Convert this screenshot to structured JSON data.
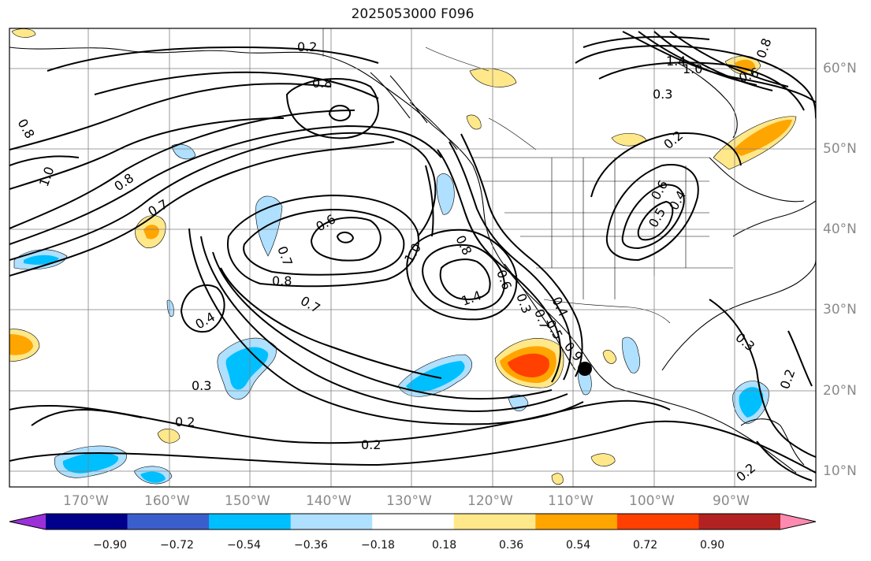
{
  "title": "2025053000 F096",
  "lon_ticks": [
    "170°W",
    "160°W",
    "150°W",
    "140°W",
    "130°W",
    "120°W",
    "110°W",
    "100°W",
    "90°W"
  ],
  "lat_ticks": [
    "60°N",
    "50°N",
    "40°N",
    "30°N",
    "20°N",
    "10°N"
  ],
  "colorbar": {
    "colors": [
      "#9b30d9",
      "#00008b",
      "#3a5fcd",
      "#00bfff",
      "#afe0ff",
      "#ffffff",
      "#ffe88a",
      "#ffa500",
      "#ff4000",
      "#b22222",
      "#ff8ab0"
    ],
    "labels": [
      "−0.90",
      "−0.72",
      "−0.54",
      "−0.36",
      "−0.18",
      "0.18",
      "0.36",
      "0.54",
      "0.72",
      "0.90"
    ]
  },
  "contour_labels": [
    "0.2",
    "0.8",
    "0.8",
    "1.0",
    "0.8",
    "0.7",
    "0.6",
    "0.7",
    "0.8",
    "0.7",
    "1.0",
    "1.4",
    "0.4",
    "0.3",
    "0.2",
    "0.2",
    "1.4",
    "1.0",
    "0.8",
    "0.6",
    "0.3",
    "0.7",
    "0.6",
    "0.5",
    "0.4",
    "0.3",
    "0.2",
    "0.2",
    "0.9",
    "0.5",
    "0.4",
    "0.3",
    "0.8",
    "0.6",
    "0.2"
  ],
  "marker": "storm-position"
}
